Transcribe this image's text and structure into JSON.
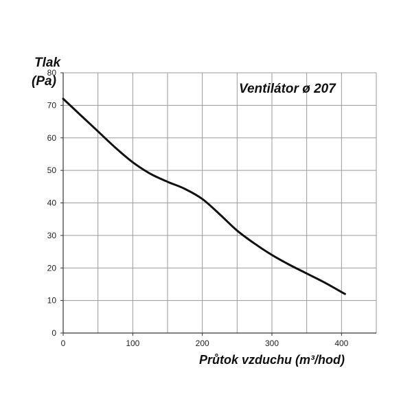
{
  "chart_data": {
    "type": "line",
    "title": "Ventilátor ø 207",
    "ylabel_lines": [
      "Tlak",
      "(Pa)"
    ],
    "xlabel": "Průtok vzduchu (m³/hod)",
    "xlim": [
      0,
      450
    ],
    "ylim": [
      0,
      80
    ],
    "xticks": [
      0,
      100,
      200,
      300,
      400
    ],
    "yticks": [
      0,
      10,
      20,
      30,
      40,
      50,
      60,
      70,
      80
    ],
    "grid": true,
    "series": [
      {
        "color": "#111111",
        "points": [
          [
            0,
            72
          ],
          [
            25,
            67
          ],
          [
            50,
            62
          ],
          [
            75,
            57
          ],
          [
            100,
            52.5
          ],
          [
            125,
            49
          ],
          [
            150,
            46.5
          ],
          [
            175,
            44.3
          ],
          [
            200,
            41.2
          ],
          [
            225,
            36.5
          ],
          [
            250,
            31.5
          ],
          [
            275,
            27.5
          ],
          [
            300,
            24
          ],
          [
            325,
            21
          ],
          [
            350,
            18.3
          ],
          [
            375,
            15.6
          ],
          [
            405,
            12
          ]
        ]
      }
    ]
  }
}
